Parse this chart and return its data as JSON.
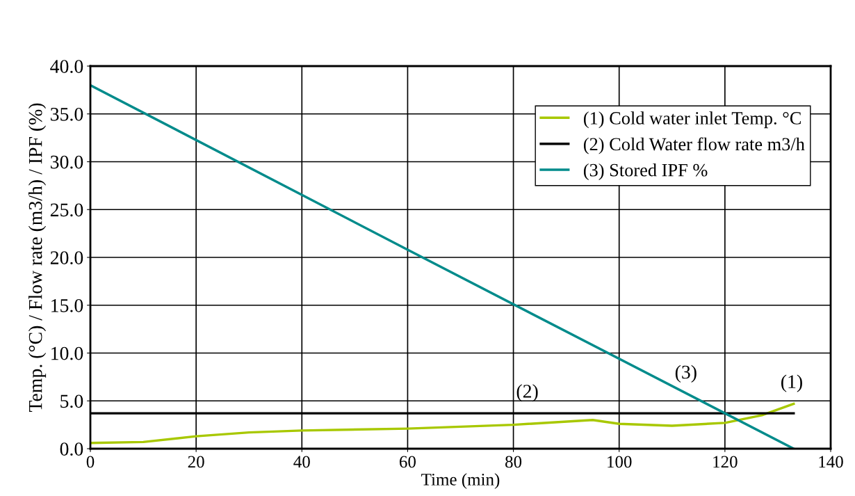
{
  "chart_data": {
    "type": "line",
    "xlabel": "Time (min)",
    "ylabel": "Temp. (°C) / Flow rate (m3/h) / IPF (%)",
    "xlim": [
      0,
      140
    ],
    "xticks": [
      0,
      20,
      40,
      60,
      80,
      100,
      120,
      140
    ],
    "ylim": [
      0,
      40
    ],
    "yticks": [
      {
        "value": 0,
        "label": "0.0"
      },
      {
        "value": 5,
        "label": "5.0"
      },
      {
        "value": 10,
        "label": "10.0"
      },
      {
        "value": 15,
        "label": "15.0"
      },
      {
        "value": 20,
        "label": "20.0"
      },
      {
        "value": 25,
        "label": "25.0"
      },
      {
        "value": 30,
        "label": "30.0"
      },
      {
        "value": 35,
        "label": "35.0"
      },
      {
        "value": 40,
        "label": "40.0"
      }
    ],
    "grid": true,
    "legend": "top right",
    "marker": "none",
    "line_style": "solid",
    "series": [
      {
        "name": "(1) Cold water inlet Temp. °C",
        "color": "#a8c800",
        "x": [
          0,
          10,
          20,
          30,
          40,
          60,
          80,
          95,
          100,
          110,
          120,
          127,
          133
        ],
        "values": [
          0.6,
          0.7,
          1.3,
          1.7,
          1.9,
          2.1,
          2.5,
          3.0,
          2.6,
          2.4,
          2.7,
          3.5,
          4.7
        ]
      },
      {
        "name": "(2) Cold Water flow rate m3/h",
        "color": "#000000",
        "x": [
          0,
          133
        ],
        "values": [
          3.7,
          3.7
        ]
      },
      {
        "name": "(3) Stored IPF %",
        "color": "#008b8b",
        "x": [
          0,
          60,
          133
        ],
        "values": [
          38.0,
          20.8,
          0
        ]
      }
    ],
    "annotations": [
      {
        "text": "(1)",
        "x": 133,
        "y": 4.7
      },
      {
        "text": "(2)",
        "x": 83,
        "y": 3.7
      },
      {
        "text": "(3)",
        "x": 113,
        "y": 5.7
      }
    ]
  }
}
